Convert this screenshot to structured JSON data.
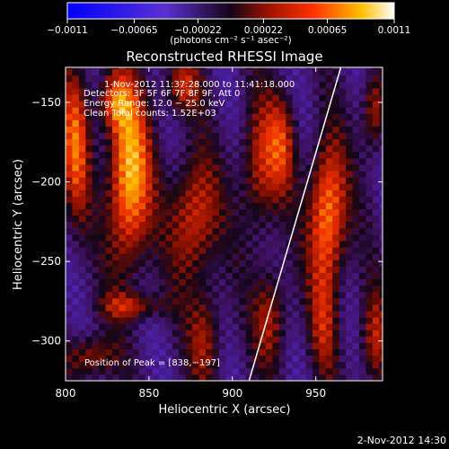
{
  "chart_data": {
    "type": "heatmap",
    "title": "Reconstructed RHESSI Image",
    "xlabel": "Heliocentric X (arcsec)",
    "ylabel": "Heliocentric Y (arcsec)",
    "xlim": [
      800,
      990
    ],
    "ylim": [
      -325,
      -128
    ],
    "xticks": [
      800,
      850,
      900,
      950
    ],
    "xtick_labels": [
      "800",
      "850",
      "900",
      "950"
    ],
    "yticks": [
      -150,
      -200,
      -250,
      -300
    ],
    "ytick_labels": [
      "−150",
      "−200",
      "−250",
      "−300"
    ],
    "colorbar": {
      "min": -0.0011,
      "max": 0.0011,
      "ticks": [
        -0.0011,
        -0.00065,
        -0.00022,
        0.00022,
        0.00065,
        0.0011
      ],
      "tick_labels": [
        "−0.0011",
        "−0.00065",
        "−0.00022",
        "0.00022",
        "0.00065",
        "0.0011"
      ],
      "unit_label": "(photons cm⁻² s⁻¹ asec⁻²)"
    },
    "annotations": [
      "1-Nov-2012 11:37:28.000 to 11:41:18.000",
      "Detectors: 3F 5F 6F 7F 8F 9F, Att 0",
      "Energy Range: 12.0 − 25.0 keV",
      "Clean    Total counts: 1.52E+03",
      "Position of Peak = [838,−197]"
    ],
    "peak": {
      "x": 838,
      "y": -197
    },
    "limb_line": [
      [
        910,
        -325
      ],
      [
        965,
        -128
      ]
    ],
    "bright_lobes": [
      {
        "x": 806,
        "y": -175,
        "sx": 6,
        "sy": 35,
        "amp": 0.7
      },
      {
        "x": 838,
        "y": -197,
        "sx": 9,
        "sy": 40,
        "amp": 1.0
      },
      {
        "x": 829,
        "y": -150,
        "sx": 7,
        "sy": 12,
        "amp": 0.55
      },
      {
        "x": 870,
        "y": -140,
        "sx": 8,
        "sy": 12,
        "amp": 0.5
      },
      {
        "x": 877,
        "y": -222,
        "sx": 10,
        "sy": 28,
        "amp": 0.65
      },
      {
        "x": 916,
        "y": -190,
        "sx": 8,
        "sy": 30,
        "amp": 0.55
      },
      {
        "x": 930,
        "y": -175,
        "sx": 6,
        "sy": 22,
        "amp": 0.5
      },
      {
        "x": 957,
        "y": -220,
        "sx": 8,
        "sy": 32,
        "amp": 0.9
      },
      {
        "x": 985,
        "y": -155,
        "sx": 5,
        "sy": 18,
        "amp": 0.55
      },
      {
        "x": 985,
        "y": -300,
        "sx": 6,
        "sy": 22,
        "amp": 0.5
      },
      {
        "x": 840,
        "y": -278,
        "sx": 14,
        "sy": 6,
        "amp": 0.45
      },
      {
        "x": 815,
        "y": -310,
        "sx": 10,
        "sy": 10,
        "amp": 0.5
      },
      {
        "x": 884,
        "y": -298,
        "sx": 7,
        "sy": 22,
        "amp": 0.45
      },
      {
        "x": 923,
        "y": -285,
        "sx": 7,
        "sy": 22,
        "amp": 0.5
      },
      {
        "x": 955,
        "y": -290,
        "sx": 6,
        "sy": 25,
        "amp": 0.4
      }
    ]
  },
  "footer": {
    "timestamp": "2-Nov-2012 14:30"
  }
}
